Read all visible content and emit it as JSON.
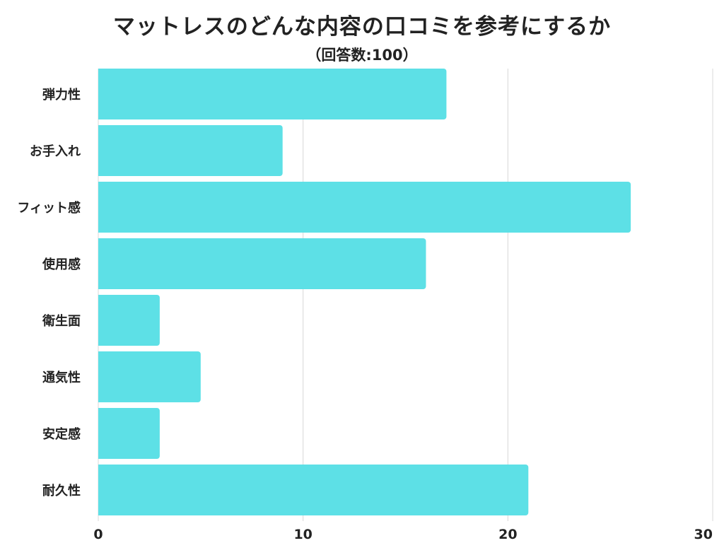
{
  "chart_title": "マットレスのどんな内容の口コミを参考にするか",
  "chart_subtitle": "（回答数:100）",
  "colors": {
    "bar": "#5de0e6",
    "grid": "#d8d8d8",
    "text": "#222222"
  },
  "chart_data": {
    "type": "bar",
    "orientation": "horizontal",
    "title": "マットレスのどんな内容の口コミを参考にするか",
    "subtitle": "（回答数:100）",
    "categories": [
      "弾力性",
      "お手入れ",
      "フィット感",
      "使用感",
      "衛生面",
      "通気性",
      "安定感",
      "耐久性"
    ],
    "values": [
      17,
      9,
      26,
      16,
      3,
      5,
      3,
      21
    ],
    "xlim": [
      0,
      30
    ],
    "xticks": [
      0,
      10,
      20,
      30
    ],
    "xlabel": "",
    "ylabel": "",
    "grid": "vertical",
    "legend": "none"
  }
}
